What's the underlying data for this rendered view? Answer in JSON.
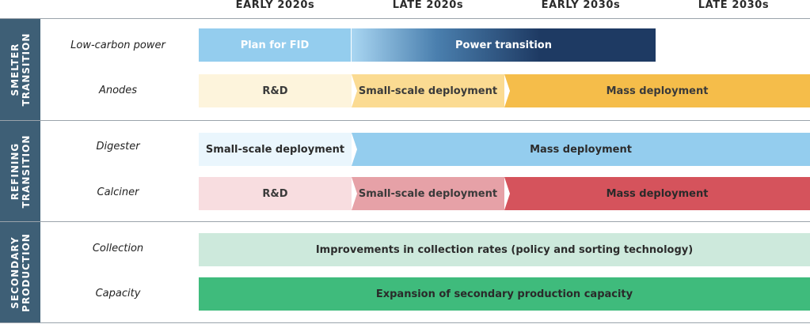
{
  "periods": [
    "EARLY 2020s",
    "LATE 2020s",
    "EARLY 2030s",
    "LATE 2030s"
  ],
  "sections": [
    {
      "label_line1": "SMELTER",
      "label_line2": "TRANSITION"
    },
    {
      "label_line1": "REFINING",
      "label_line2": "TRANSITION"
    },
    {
      "label_line1": "SECONDARY",
      "label_line2": "PRODUCTION"
    }
  ],
  "rows": [
    {
      "label": "Low-carbon power",
      "bars": [
        "Plan for FID",
        "Power transition"
      ]
    },
    {
      "label": "Anodes",
      "bars": [
        "R&D",
        "Small-scale deployment",
        "Mass deployment"
      ]
    },
    {
      "label": "Digester",
      "bars": [
        "Small-scale deployment",
        "Mass deployment"
      ]
    },
    {
      "label": "Calciner",
      "bars": [
        "R&D",
        "Small-scale deployment",
        "Mass deployment"
      ]
    },
    {
      "label": "Collection",
      "bars": [
        "Improvements in collection rates (policy and sorting technology)"
      ]
    },
    {
      "label": "Capacity",
      "bars": [
        "Expansion of secondary production capacity"
      ]
    }
  ],
  "colors": {
    "section_label_bg": "#3e5f76",
    "fid": "#94cdee",
    "power_transition_start": "#a9d6f2",
    "power_transition_end": "#1e3a63",
    "anodes_rd": "#fdf4dc",
    "anodes_small": "#fbdb92",
    "anodes_mass": "#f5bd4a",
    "digester_small": "#eaf6fd",
    "digester_mass": "#94cdee",
    "calciner_rd": "#f8dde0",
    "calciner_small": "#e6a1a7",
    "calciner_mass": "#d5535c",
    "collection": "#cde9dc",
    "capacity": "#3fbb7c"
  }
}
